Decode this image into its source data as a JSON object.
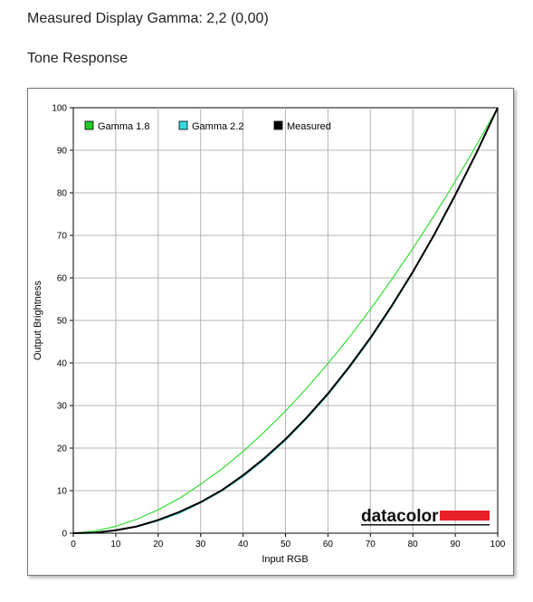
{
  "heading": {
    "title": "Measured Display Gamma: 2,2 (0,00)",
    "subtitle": "Tone Response"
  },
  "logo": {
    "text": "datacolor",
    "accent": "#e8202a"
  },
  "chart_data": {
    "type": "line",
    "xlabel": "Input RGB",
    "ylabel": "Output Brightness",
    "xlim": [
      0,
      100
    ],
    "ylim": [
      0,
      100
    ],
    "xticks": [
      "0",
      "10",
      "20",
      "30",
      "40",
      "50",
      "60",
      "70",
      "80",
      "90",
      "100"
    ],
    "yticks": [
      "0",
      "10",
      "20",
      "30",
      "40",
      "50",
      "60",
      "70",
      "80",
      "90",
      "100"
    ],
    "grid": true,
    "legend_position": "top-left",
    "series": [
      {
        "name": "Gamma 1.8",
        "color": "#33dd33",
        "swatch": "#22cc22",
        "gamma": 1.8,
        "x": [
          0,
          5,
          10,
          15,
          20,
          25,
          30,
          35,
          40,
          45,
          50,
          55,
          60,
          65,
          70,
          75,
          80,
          85,
          90,
          95,
          100
        ],
        "y": [
          0,
          0.5,
          1.6,
          3.3,
          5.5,
          8.2,
          11.5,
          15.1,
          19.2,
          23.8,
          28.7,
          34.1,
          39.9,
          46.0,
          52.6,
          59.6,
          66.9,
          74.6,
          82.7,
          91.2,
          100
        ]
      },
      {
        "name": "Gamma 2.2",
        "color": "#33cccc",
        "swatch": "#33dddd",
        "gamma": 2.2,
        "x": [
          0,
          5,
          10,
          15,
          20,
          25,
          30,
          35,
          40,
          45,
          50,
          55,
          60,
          65,
          70,
          75,
          80,
          85,
          90,
          95,
          100
        ],
        "y": [
          0,
          0.1,
          0.6,
          1.5,
          2.9,
          4.7,
          7.1,
          9.9,
          13.3,
          17.3,
          21.8,
          26.9,
          32.5,
          38.8,
          45.6,
          53.1,
          61.2,
          69.9,
          79.3,
          89.3,
          100
        ]
      },
      {
        "name": "Measured",
        "color": "#000000",
        "swatch": "#000000",
        "x": [
          0,
          5,
          10,
          15,
          20,
          25,
          30,
          35,
          40,
          45,
          50,
          55,
          60,
          65,
          70,
          75,
          80,
          85,
          90,
          95,
          100
        ],
        "y": [
          0,
          0.1,
          0.7,
          1.6,
          3.1,
          5.0,
          7.3,
          10.1,
          13.6,
          17.6,
          22.1,
          27.2,
          32.8,
          39.1,
          45.9,
          53.4,
          61.4,
          70.1,
          79.5,
          89.4,
          100
        ]
      }
    ]
  }
}
